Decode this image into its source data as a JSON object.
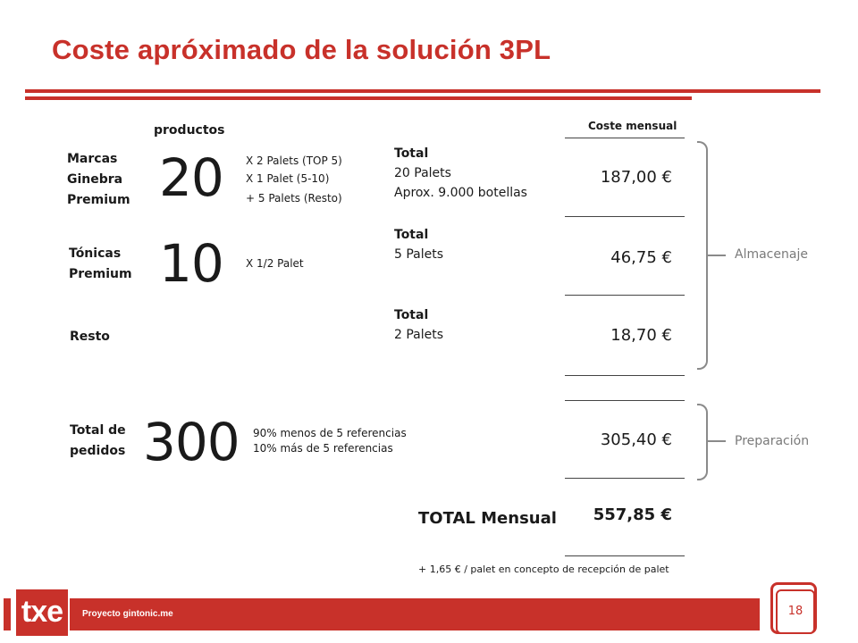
{
  "title": "Coste apróximado de la solución 3PL",
  "column_headers": {
    "productos": "productos",
    "coste_mensual": "Coste mensual"
  },
  "rows": [
    {
      "label_lines": [
        "Marcas",
        "Ginebra",
        "Premium"
      ],
      "number": "20",
      "details": [
        "X 2 Palets  (TOP 5)",
        "X 1 Palet  (5-10)",
        "+ 5 Palets  (Resto)"
      ],
      "total_heading": "Total",
      "total_lines": [
        "20 Palets",
        "Aprox. 9.000 botellas"
      ],
      "cost": "187,00 €"
    },
    {
      "label_lines": [
        "Tónicas",
        "Premium"
      ],
      "number": "10",
      "details": [
        "X 1/2 Palet"
      ],
      "total_heading": "Total",
      "total_lines": [
        "5 Palets"
      ],
      "cost": "46,75 €"
    },
    {
      "label_lines": [
        "Resto"
      ],
      "number": "",
      "details": [],
      "total_heading": "Total",
      "total_lines": [
        "2 Palets"
      ],
      "cost": "18,70 €"
    },
    {
      "label_lines": [
        "Total de",
        "pedidos"
      ],
      "number": "300",
      "details": [
        "90%  menos de 5 referencias",
        "10% más de 5 referencias"
      ],
      "total_heading": "",
      "total_lines": [],
      "cost": "305,40 €"
    }
  ],
  "total_mensual": {
    "label": "TOTAL Mensual",
    "value": "557,85 €"
  },
  "note": "+ 1,65 € / palet en concepto de recepción de palet",
  "groups": {
    "almacenaje": "Almacenaje",
    "preparacion": "Preparación"
  },
  "footer": {
    "logo": "txe",
    "project": "Proyecto gintonic.me",
    "page": "18"
  },
  "colors": {
    "accent": "#c8312a",
    "bracket": "#8a8a8a"
  }
}
